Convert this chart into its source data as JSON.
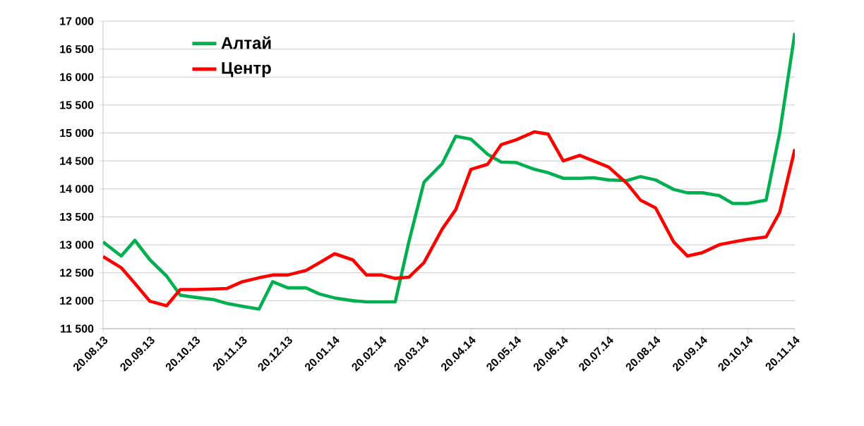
{
  "chart_data": {
    "type": "line",
    "x": [
      "2013-08-20",
      "2013-09-01",
      "2013-09-10",
      "2013-09-20",
      "2013-10-01",
      "2013-10-10",
      "2013-10-20",
      "2013-11-01",
      "2013-11-10",
      "2013-11-20",
      "2013-12-01",
      "2013-12-10",
      "2013-12-20",
      "2014-01-01",
      "2014-01-10",
      "2014-01-20",
      "2014-02-01",
      "2014-02-10",
      "2014-02-20",
      "2014-03-01",
      "2014-03-10",
      "2014-03-20",
      "2014-04-01",
      "2014-04-10",
      "2014-04-20",
      "2014-05-01",
      "2014-05-10",
      "2014-05-20",
      "2014-06-01",
      "2014-06-10",
      "2014-06-20",
      "2014-07-01",
      "2014-07-10",
      "2014-07-20",
      "2014-08-01",
      "2014-08-10",
      "2014-08-20",
      "2014-09-01",
      "2014-09-10",
      "2014-09-20",
      "2014-10-01",
      "2014-10-10",
      "2014-10-20",
      "2014-11-01",
      "2014-11-10",
      "2014-11-20"
    ],
    "series": [
      {
        "name": "Алтай",
        "color": "#00b050",
        "values": [
          13050,
          12800,
          13080,
          12730,
          12440,
          12100,
          12060,
          12020,
          11950,
          11900,
          11850,
          12340,
          12230,
          12230,
          12120,
          12050,
          12000,
          11980,
          11980,
          11980,
          13050,
          14120,
          14450,
          14940,
          14890,
          14620,
          14480,
          14470,
          14350,
          14290,
          14190,
          14190,
          14200,
          14160,
          14150,
          14220,
          14160,
          13990,
          13930,
          13930,
          13880,
          13740,
          13740,
          13800,
          15000,
          16790
        ]
      },
      {
        "name": "Центр",
        "color": "#ff0000",
        "values": [
          12790,
          12590,
          12310,
          11990,
          11910,
          12200,
          12200,
          12210,
          12220,
          12340,
          12410,
          12460,
          12460,
          12540,
          12680,
          12840,
          12730,
          12460,
          12460,
          12400,
          12420,
          12680,
          13280,
          13630,
          14350,
          14440,
          14790,
          14880,
          15020,
          14980,
          14500,
          14600,
          14500,
          14390,
          14100,
          13800,
          13660,
          13050,
          12800,
          12860,
          13000,
          13050,
          13100,
          13140,
          13580,
          14710
        ]
      }
    ],
    "xlim": [
      "2013-08-20",
      "2014-11-20"
    ],
    "xticks": [
      {
        "value": "2013-08-20",
        "label": "20.08.13"
      },
      {
        "value": "2013-09-20",
        "label": "20.09.13"
      },
      {
        "value": "2013-10-20",
        "label": "20.10.13"
      },
      {
        "value": "2013-11-20",
        "label": "20.11.13"
      },
      {
        "value": "2013-12-20",
        "label": "20.12.13"
      },
      {
        "value": "2014-01-20",
        "label": "20.01.14"
      },
      {
        "value": "2014-02-20",
        "label": "20.02.14"
      },
      {
        "value": "2014-03-20",
        "label": "20.03.14"
      },
      {
        "value": "2014-04-20",
        "label": "20.04.14"
      },
      {
        "value": "2014-05-20",
        "label": "20.05.14"
      },
      {
        "value": "2014-06-20",
        "label": "20.06.14"
      },
      {
        "value": "2014-07-20",
        "label": "20.07.14"
      },
      {
        "value": "2014-08-20",
        "label": "20.08.14"
      },
      {
        "value": "2014-09-20",
        "label": "20.09.14"
      },
      {
        "value": "2014-10-20",
        "label": "20.10.14"
      },
      {
        "value": "2014-11-20",
        "label": "20.11.14"
      }
    ],
    "ylim": [
      11500,
      17000
    ],
    "yticks": [
      {
        "value": 11500,
        "label": "11 500"
      },
      {
        "value": 12000,
        "label": "12 000"
      },
      {
        "value": 12500,
        "label": "12 500"
      },
      {
        "value": 13000,
        "label": "13 000"
      },
      {
        "value": 13500,
        "label": "13 500"
      },
      {
        "value": 14000,
        "label": "14 000"
      },
      {
        "value": 14500,
        "label": "14 500"
      },
      {
        "value": 15000,
        "label": "15 000"
      },
      {
        "value": 15500,
        "label": "15 500"
      },
      {
        "value": 16000,
        "label": "16 000"
      },
      {
        "value": 16500,
        "label": "16 500"
      },
      {
        "value": 17000,
        "label": "17 000"
      }
    ],
    "grid": "y",
    "legend": "top left",
    "marker": "none",
    "line_style": "solid"
  }
}
